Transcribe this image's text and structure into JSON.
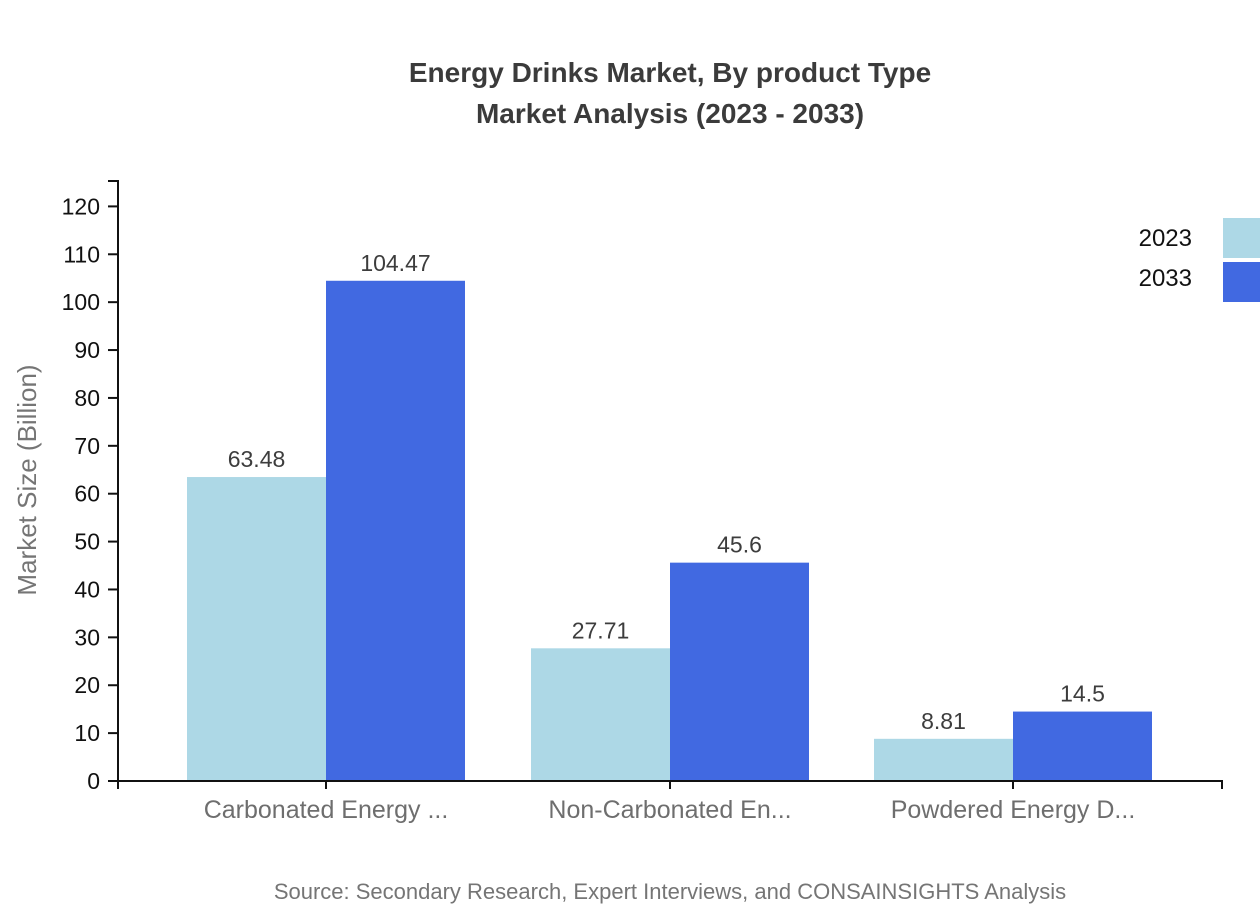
{
  "title": {
    "line1": "Energy Drinks Market, By product Type",
    "line2": "Market Analysis (2023 - 2033)"
  },
  "source": "Source: Secondary Research, Expert Interviews, and CONSAINSIGHTS Analysis",
  "chart_data": {
    "type": "bar",
    "title": "Energy Drinks Market, By product Type Market Analysis (2023 - 2033)",
    "categories": [
      "Carbonated Energy ...",
      "Non-Carbonated En...",
      "Powdered Energy D..."
    ],
    "series": [
      {
        "name": "2023",
        "color": "#ADD8E6",
        "values": [
          63.48,
          27.71,
          8.81
        ]
      },
      {
        "name": "2033",
        "color": "#4169E1",
        "values": [
          104.47,
          45.6,
          14.5
        ]
      }
    ],
    "xlabel": "",
    "ylabel": "Market Size (Billion)",
    "ylim": [
      0,
      120
    ],
    "ytick_step": 10,
    "grid": false,
    "legend_position": "top-right",
    "value_labels_shown": true
  },
  "colors": {
    "axis": "#111111",
    "tick_label": "#111111",
    "category_label": "#6e6e6e",
    "y_axis_title": "#757575",
    "value_label": "#3d3d3d",
    "legend_text": "#111111",
    "title_text": "#3b3b3b",
    "source_text": "#757575"
  }
}
